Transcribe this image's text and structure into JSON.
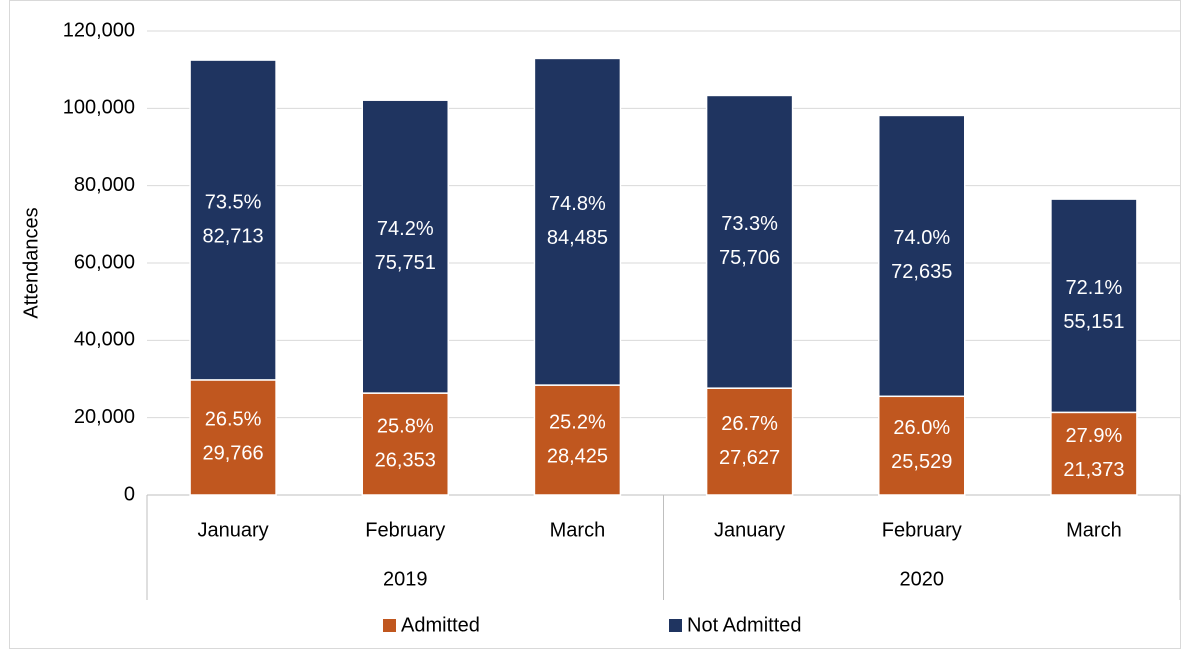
{
  "chart_data": {
    "type": "stacked-bar",
    "y_label": "Attendances",
    "categories": [
      "January",
      "February",
      "March",
      "January",
      "February",
      "March"
    ],
    "groups": [
      "2019",
      "2020"
    ],
    "series": [
      {
        "name": "Admitted",
        "color": "#c0571f",
        "values": [
          29766,
          26353,
          28425,
          27627,
          25529,
          21373
        ],
        "value_labels": [
          "29,766",
          "26,353",
          "28,425",
          "27,627",
          "25,529",
          "21,373"
        ],
        "percent_labels": [
          "26.5%",
          "25.8%",
          "25.2%",
          "26.7%",
          "26.0%",
          "27.9%"
        ]
      },
      {
        "name": "Not Admitted",
        "color": "#1f3460",
        "values": [
          82713,
          75751,
          84485,
          75706,
          72635,
          55151
        ],
        "value_labels": [
          "82,713",
          "75,751",
          "84,485",
          "75,706",
          "72,635",
          "55,151"
        ],
        "percent_labels": [
          "73.5%",
          "74.2%",
          "74.8%",
          "73.3%",
          "74.0%",
          "72.1%"
        ]
      }
    ],
    "ylim": [
      0,
      120000
    ],
    "yticks": [
      {
        "value": 0,
        "label": "0"
      },
      {
        "value": 20000,
        "label": "20,000"
      },
      {
        "value": 40000,
        "label": "40,000"
      },
      {
        "value": 60000,
        "label": "60,000"
      },
      {
        "value": 80000,
        "label": "80,000"
      },
      {
        "value": 100000,
        "label": "100,000"
      },
      {
        "value": 120000,
        "label": "120,000"
      }
    ],
    "grid": true,
    "legend": "bottom"
  }
}
